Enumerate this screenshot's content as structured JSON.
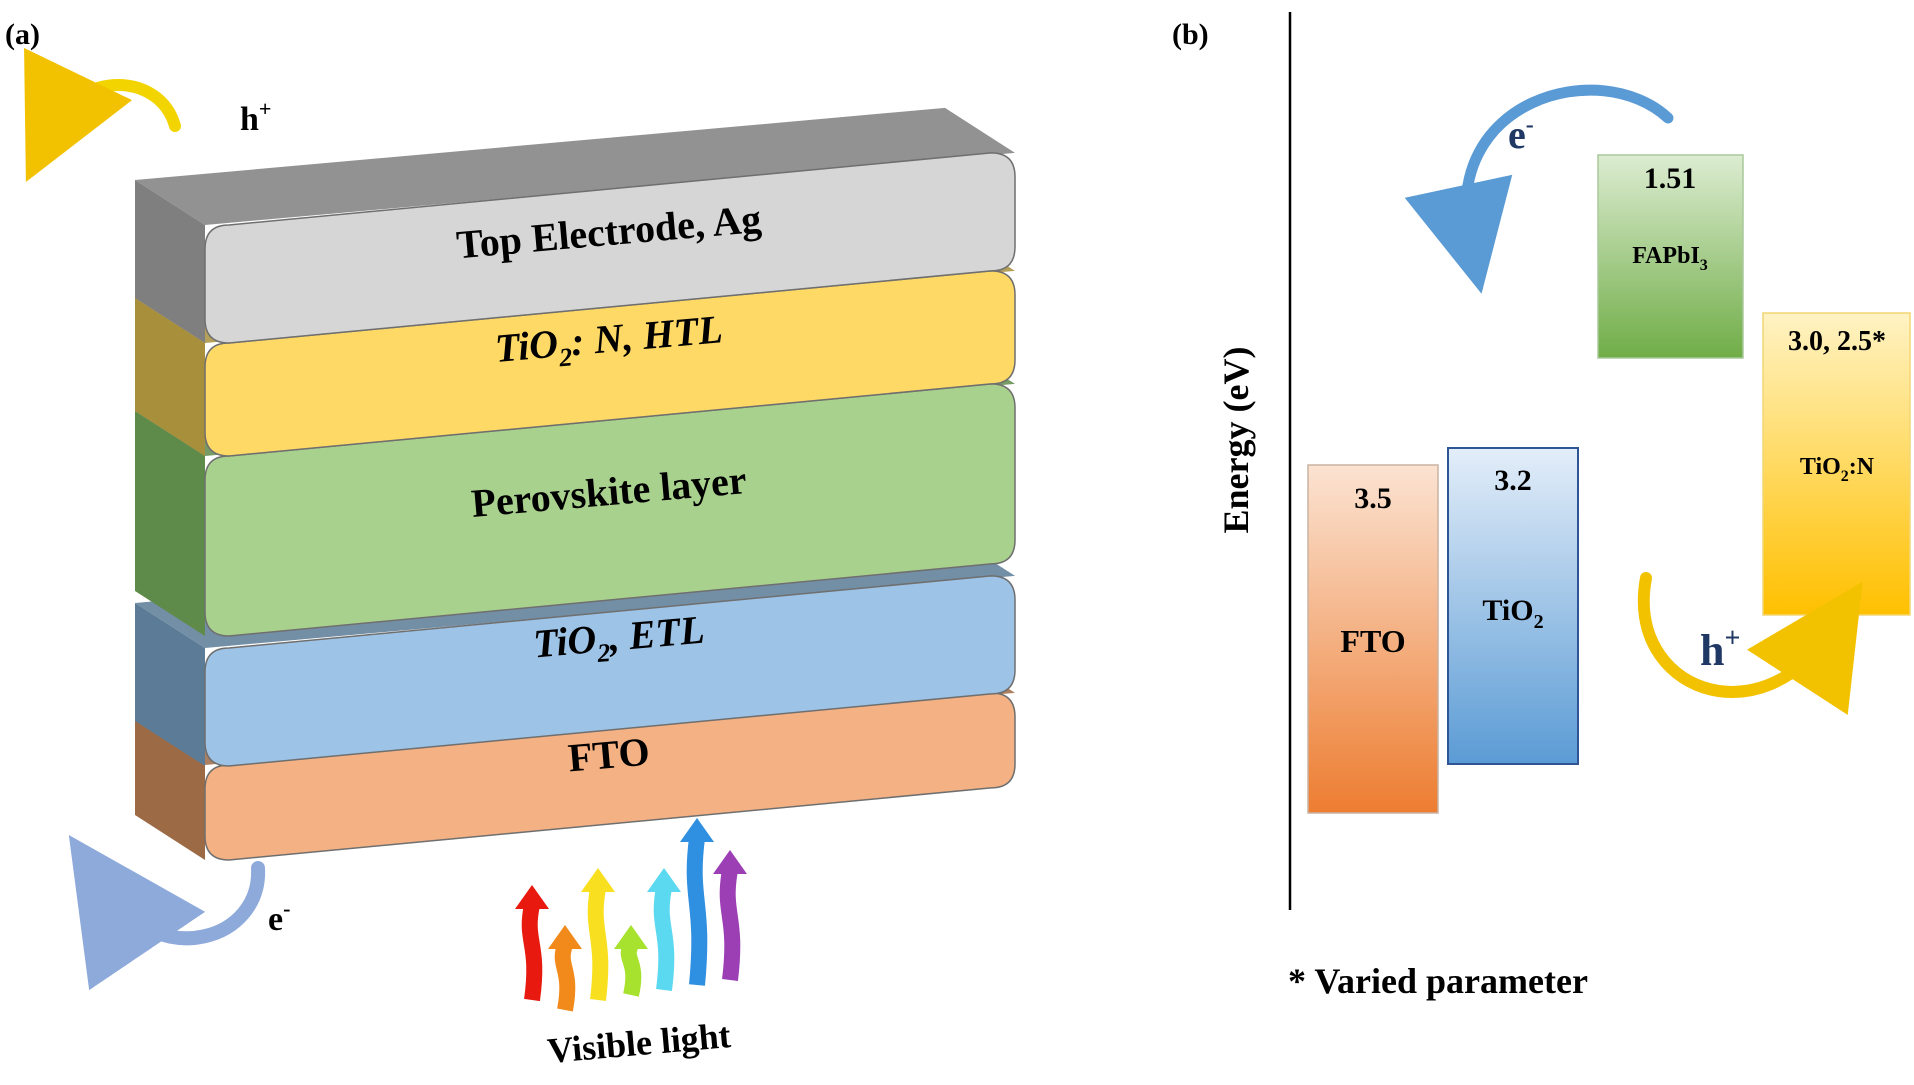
{
  "panel_a": {
    "label": "(a)",
    "layers": {
      "top_electrode": "Top Electrode, Ag",
      "htl_main": "TiO",
      "htl_sub": "2",
      "htl_rest": ": N, HTL",
      "perovskite": "Perovskite layer",
      "etl_main": "TiO",
      "etl_sub": "2",
      "etl_rest": ", ETL",
      "fto": "FTO"
    },
    "hole_label_main": "h",
    "hole_label_sup": "+",
    "electron_label_main": "e",
    "electron_label_sup": "-",
    "light_label": "Visible light"
  },
  "panel_b": {
    "label": "(b)",
    "axis_label": "Energy (eV)",
    "blocks": {
      "fto_value": "3.5",
      "fto_name": "FTO",
      "tio2_value": "3.2",
      "tio2_name_main": "TiO",
      "tio2_name_sub": "2",
      "fapbi3_value": "1.51",
      "fapbi3_name_main": "FAPbI",
      "fapbi3_name_sub": "3",
      "tio2n_value": "3.0, 2.5*",
      "tio2n_name_main": "TiO",
      "tio2n_name_sub": "2",
      "tio2n_name_rest": ":N"
    },
    "electron_label_main": "e",
    "electron_label_sup": "-",
    "hole_label_main": "h",
    "hole_label_sup": "+",
    "footnote": "* Varied parameter"
  },
  "colors": {
    "top_electrode": "#d6d6d6",
    "htl": "#ffd966",
    "perovskite": "#a9d18e",
    "etl": "#9dc3e6",
    "fto": "#f4b183",
    "electron_arrow": "#5b9bd5",
    "hole_arrow": "#f5c518"
  }
}
